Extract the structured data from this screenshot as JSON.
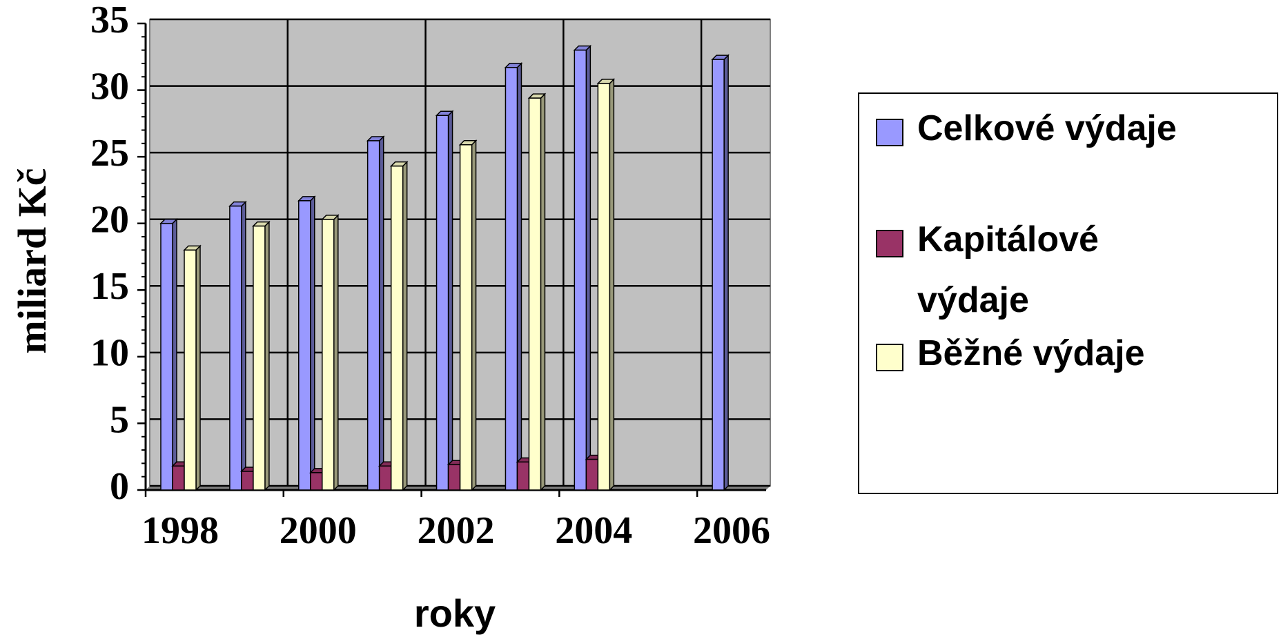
{
  "chart_data": {
    "type": "bar",
    "y_label": "miliard Kč",
    "x_label": "roky",
    "categories": [
      "1998",
      null,
      "2000",
      null,
      "2002",
      null,
      "2004",
      null,
      "2006"
    ],
    "series": [
      {
        "name": "Celkové výdaje",
        "color": "#9999ff",
        "values": [
          20,
          21.3,
          21.7,
          26.2,
          28.1,
          31.7,
          33,
          null,
          32.3
        ]
      },
      {
        "name": "Kapitálové výdaje",
        "color": "#993366",
        "values": [
          1.8,
          1.4,
          1.3,
          1.8,
          1.9,
          2.1,
          2.3,
          null,
          null
        ]
      },
      {
        "name": "Běžné výdaje",
        "color": "#ffffcc",
        "values": [
          18,
          19.8,
          20.3,
          24.3,
          25.9,
          29.4,
          30.5,
          null,
          null
        ]
      }
    ],
    "ylim": [
      0,
      35
    ],
    "yticks": [
      0,
      5,
      10,
      15,
      20,
      25,
      30,
      35
    ],
    "grid": true,
    "legend": "right"
  }
}
